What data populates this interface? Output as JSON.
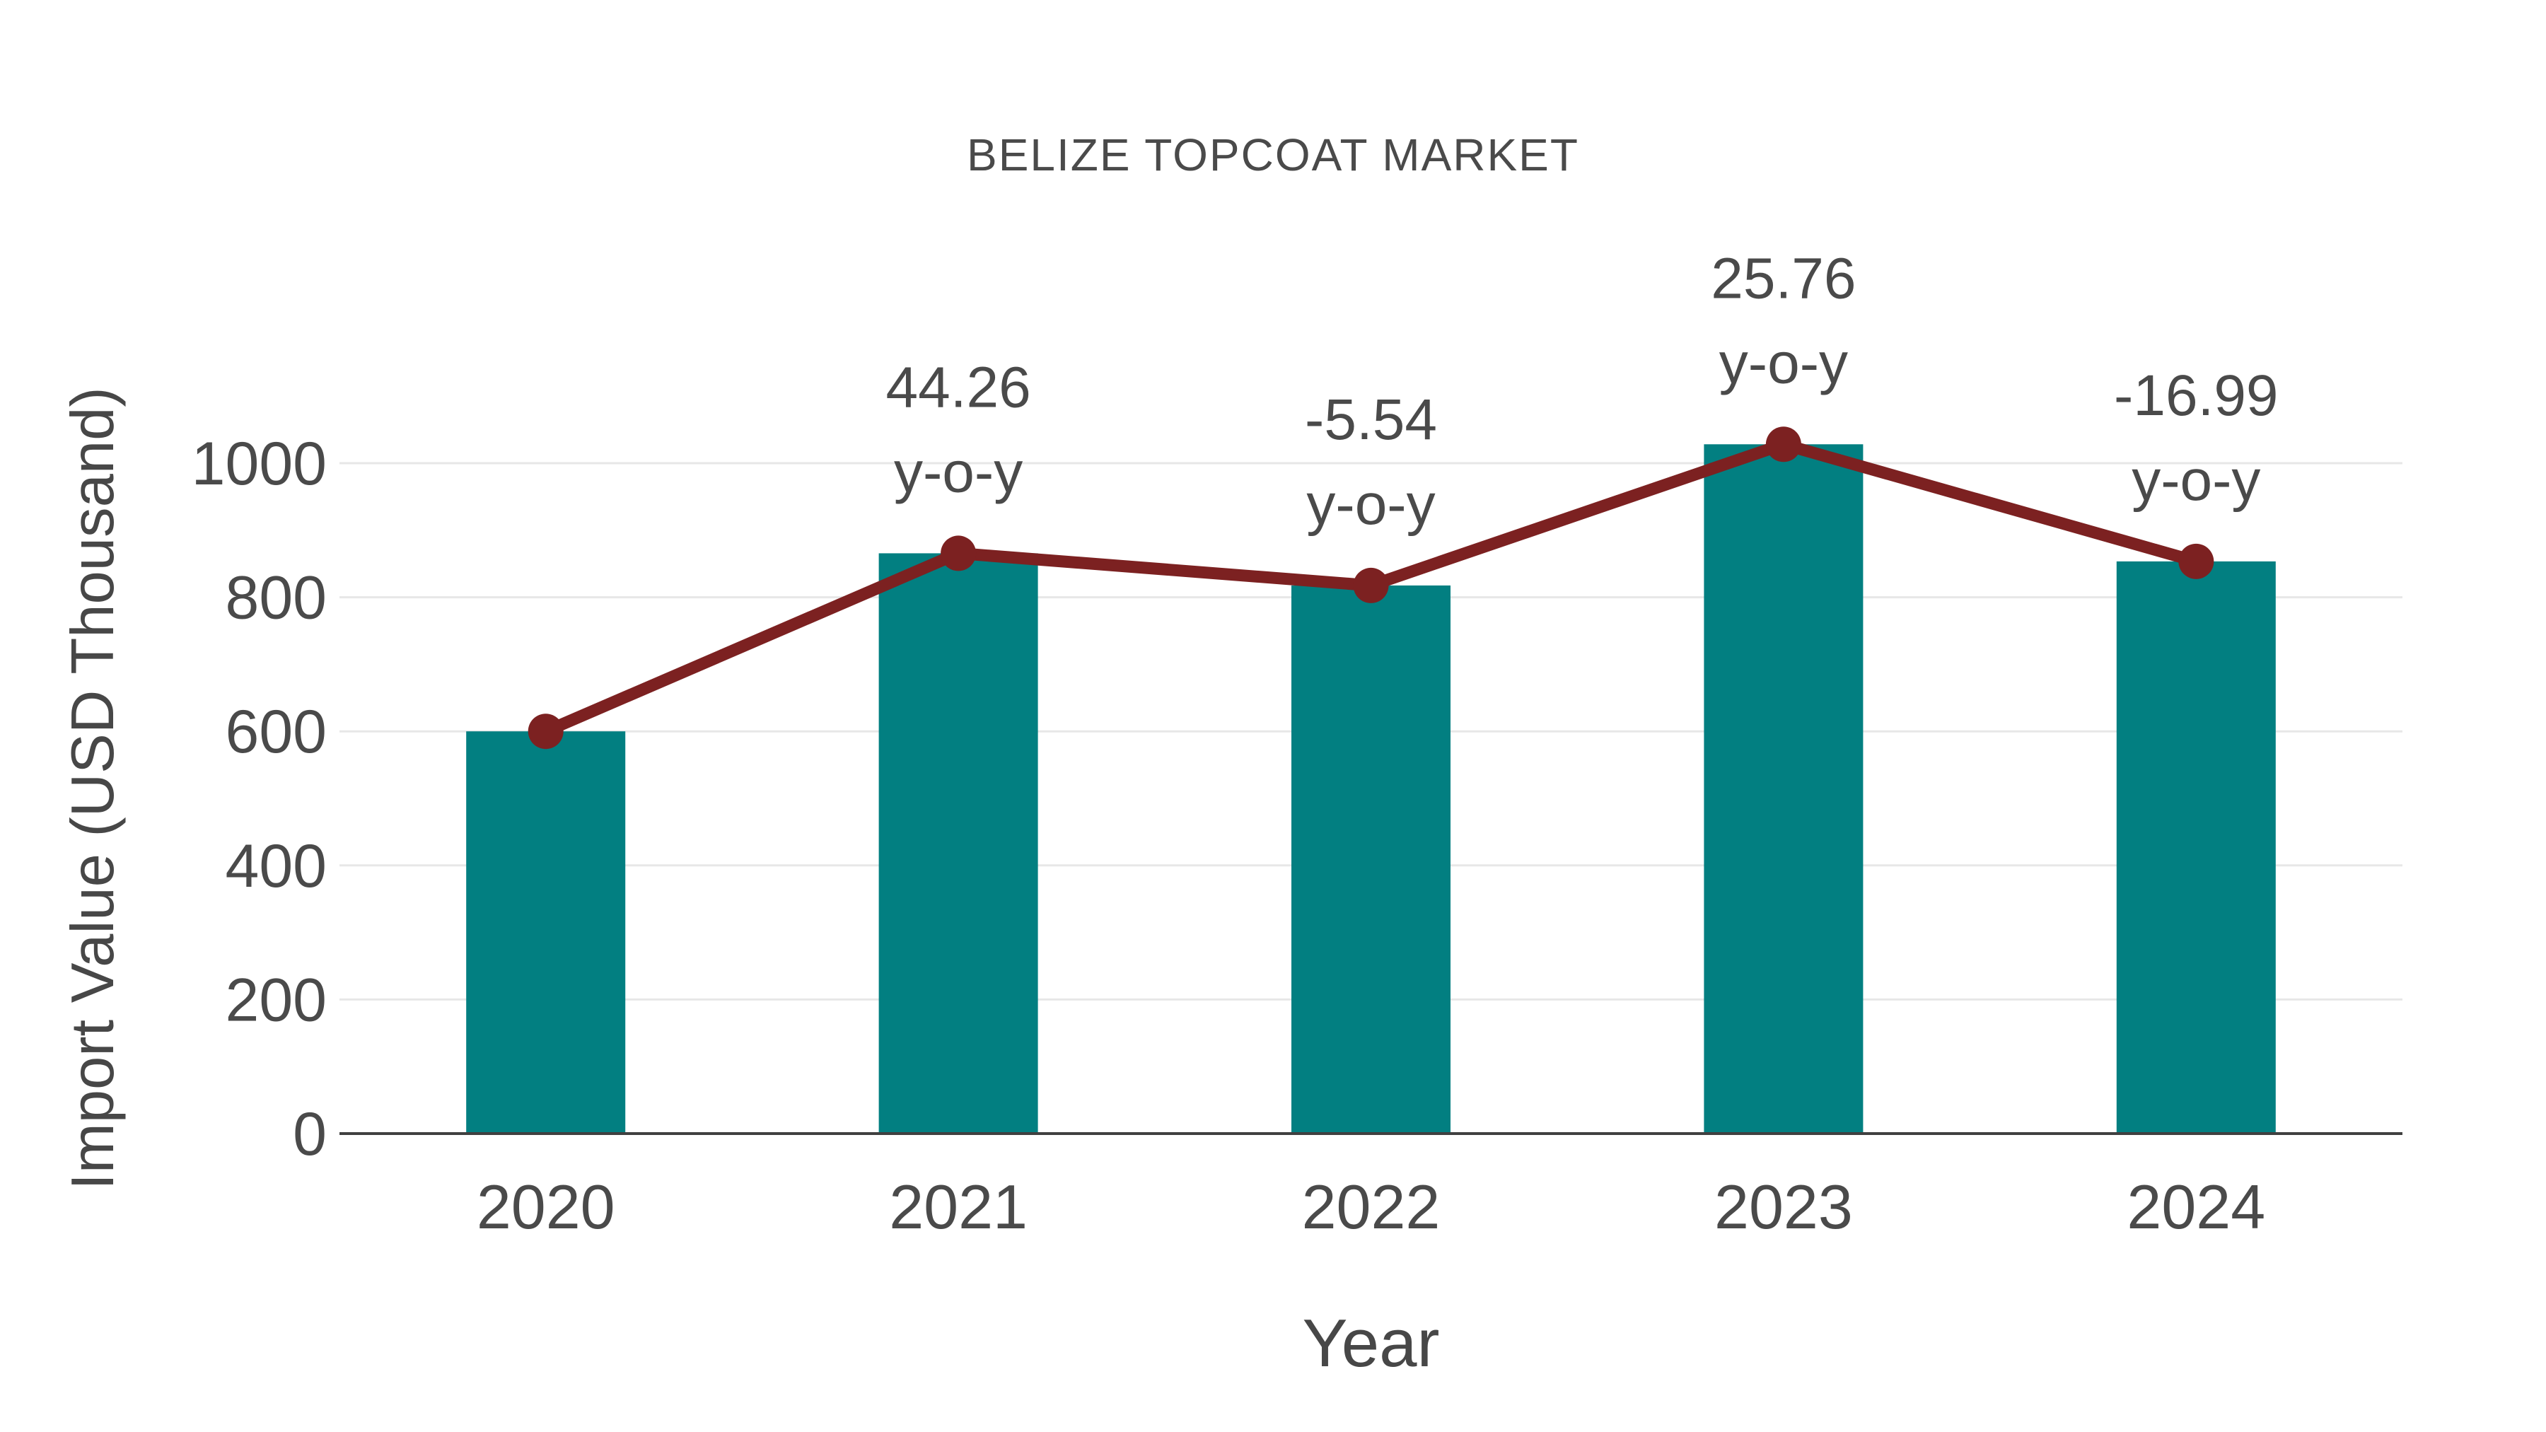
{
  "chart_data": {
    "type": "bar",
    "title": "BELIZE TOPCOAT MARKET",
    "xlabel": "Year",
    "ylabel": "Import Value (USD Thousand)",
    "categories": [
      "2020",
      "2021",
      "2022",
      "2023",
      "2024"
    ],
    "series": [
      {
        "name": "Import Value bars",
        "type": "bar",
        "values": [
          600,
          865.6,
          817.6,
          1028.2,
          853.5
        ]
      },
      {
        "name": "Import Value trend",
        "type": "line",
        "values": [
          600,
          865.6,
          817.6,
          1028.2,
          853.5
        ]
      }
    ],
    "annotations": [
      {
        "category_index": 1,
        "value_label": "44.26",
        "suffix_label": "y-o-y"
      },
      {
        "category_index": 2,
        "value_label": "-5.54",
        "suffix_label": "y-o-y"
      },
      {
        "category_index": 3,
        "value_label": "25.76",
        "suffix_label": "y-o-y"
      },
      {
        "category_index": 4,
        "value_label": "-16.99",
        "suffix_label": "y-o-y"
      }
    ],
    "yticks": [
      0,
      200,
      400,
      600,
      800,
      1000
    ],
    "ylim": [
      0,
      1105
    ],
    "grid": true,
    "legend": false,
    "colors": {
      "bar": "#027F81",
      "line": "#7C2121",
      "marker": "#7C2121",
      "text": "#4A4A4A",
      "gridline": "#E7E7E7",
      "axis_line": "#404040"
    }
  }
}
